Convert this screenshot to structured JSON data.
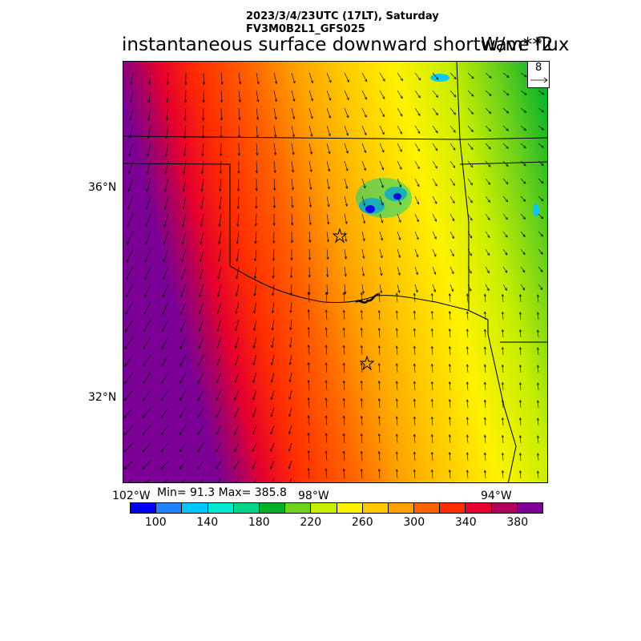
{
  "header": {
    "datetime": "2023/3/4/23UTC (17LT), Saturday",
    "model": "FV3M0B2L1_GFS025",
    "title": "instantaneous surface downward shortwave flux",
    "units": "W/m**2"
  },
  "map": {
    "lat_labels": [
      "36°N",
      "32°N"
    ],
    "lon_labels": [
      "102°W",
      "98°W",
      "94°W"
    ],
    "stats": "Min= 91.3 Max= 385.8",
    "reference_vector_label": "8",
    "markers": [
      "star-marker",
      "star-marker"
    ]
  },
  "colorbar": {
    "colors": [
      "#0000f5",
      "#1f82ff",
      "#00c8ff",
      "#00e8d0",
      "#00d58a",
      "#00b02a",
      "#6fd21a",
      "#c8ee00",
      "#fff200",
      "#ffc800",
      "#ffa000",
      "#ff6400",
      "#ff2d00",
      "#e6002d",
      "#b4005a",
      "#7a0096"
    ],
    "labels": [
      "100",
      "140",
      "180",
      "220",
      "260",
      "300",
      "340",
      "380"
    ]
  }
}
